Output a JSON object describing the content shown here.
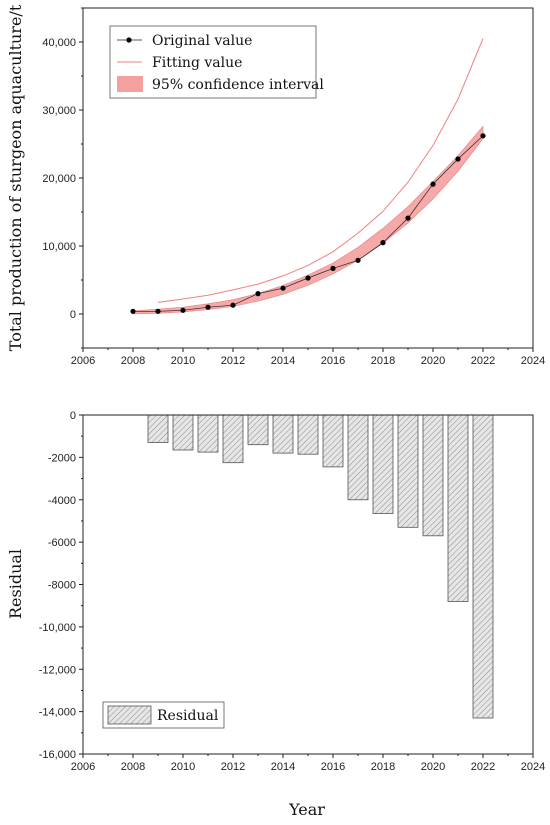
{
  "chart_data": [
    {
      "type": "line",
      "ylabel": "Total production of sturgeon aquaculture/t",
      "xlim": [
        2006,
        2024
      ],
      "ylim": [
        -5000,
        45000
      ],
      "x_ticks": [
        2006,
        2008,
        2010,
        2012,
        2014,
        2016,
        2018,
        2020,
        2022,
        2024
      ],
      "y_ticks": [
        0,
        10000,
        20000,
        30000,
        40000
      ],
      "y_tick_labels": [
        "0",
        "10,000",
        "20,000",
        "30,000",
        "40,000"
      ],
      "legend_position": "top-left",
      "colors": {
        "original": "#222222",
        "fitting": "#f08080",
        "band": "#f4a0a0"
      },
      "series": [
        {
          "name": "Original value",
          "x": [
            2008,
            2009,
            2010,
            2011,
            2012,
            2013,
            2014,
            2015,
            2016,
            2017,
            2018,
            2019,
            2020,
            2021,
            2022
          ],
          "y": [
            400,
            400,
            550,
            1000,
            1300,
            3000,
            3800,
            5300,
            6700,
            7900,
            10500,
            14100,
            19100,
            22800,
            26200
          ]
        },
        {
          "name": "Fitting value",
          "x": [
            2009,
            2010,
            2011,
            2012,
            2013,
            2014,
            2015,
            2016,
            2017,
            2018,
            2019,
            2020,
            2021,
            2022
          ],
          "y": [
            1700,
            2200,
            2750,
            3550,
            4400,
            5600,
            7150,
            9150,
            11900,
            15100,
            19400,
            24800,
            31600,
            40500
          ]
        },
        {
          "name": "95% confidence interval",
          "x": [
            2008,
            2009,
            2010,
            2011,
            2012,
            2013,
            2014,
            2015,
            2016,
            2017,
            2018,
            2019,
            2020,
            2021,
            2022
          ],
          "lower": [
            0,
            100,
            300,
            650,
            1100,
            1900,
            2900,
            4200,
            5900,
            7900,
            10400,
            13400,
            16900,
            21000,
            25800
          ],
          "upper": [
            450,
            700,
            1000,
            1500,
            2100,
            3000,
            4200,
            5700,
            7500,
            9800,
            12600,
            15800,
            19500,
            23300,
            27600
          ]
        }
      ]
    },
    {
      "type": "bar",
      "xlabel": "Year",
      "ylabel": "Residual",
      "xlim": [
        2006,
        2024
      ],
      "ylim": [
        -16000,
        0
      ],
      "x_ticks": [
        2006,
        2008,
        2010,
        2012,
        2014,
        2016,
        2018,
        2020,
        2022,
        2024
      ],
      "y_ticks": [
        0,
        -2000,
        -4000,
        -6000,
        -8000,
        -10000,
        -12000,
        -14000,
        -16000
      ],
      "y_tick_labels": [
        "0",
        "-2000",
        "-4000",
        "-6000",
        "-8000",
        "-10,000",
        "-12,000",
        "-14,000",
        "-16,000"
      ],
      "legend_position": "bottom-left",
      "colors": {
        "fill": "#e6e6e6",
        "hatch": "#8c8c8c",
        "edge": "#555555"
      },
      "series": [
        {
          "name": "Residual",
          "x": [
            2009,
            2010,
            2011,
            2012,
            2013,
            2014,
            2015,
            2016,
            2017,
            2018,
            2019,
            2020,
            2021,
            2022
          ],
          "values": [
            -1300,
            -1650,
            -1750,
            -2250,
            -1400,
            -1800,
            -1850,
            -2450,
            -4000,
            -4650,
            -5300,
            -5700,
            -8800,
            -14300
          ]
        }
      ]
    }
  ]
}
